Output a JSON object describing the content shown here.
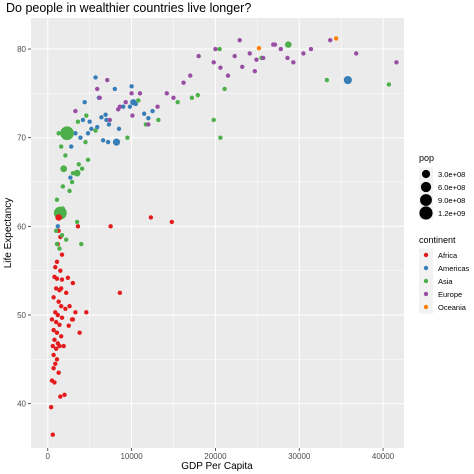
{
  "chart_data": {
    "type": "scatter",
    "title": "Do people in wealthier countries live longer?",
    "xlabel": "GDP Per Capita",
    "ylabel": "Life Expectancy",
    "xlim": [
      -2000,
      42500
    ],
    "ylim": [
      35,
      83.5
    ],
    "xticks": [
      0,
      10000,
      20000,
      30000,
      40000
    ],
    "xtick_labels": [
      "0",
      "10000",
      "20000",
      "30000",
      "40000"
    ],
    "yticks": [
      40,
      50,
      60,
      70,
      80
    ],
    "ytick_labels": [
      "40",
      "50",
      "60",
      "70",
      "80"
    ],
    "grid": true,
    "legend_placement": "right",
    "colors": {
      "Africa": "#e41a1c",
      "Americas": "#377eb8",
      "Asia": "#4daf4a",
      "Europe": "#984ea3",
      "Oceania": "#ff7f00"
    },
    "size_legend": {
      "title": "pop",
      "entries": [
        {
          "label": "3.0e+08",
          "value": 300000000
        },
        {
          "label": "6.0e+08",
          "value": 600000000
        },
        {
          "label": "9.0e+08",
          "value": 900000000
        },
        {
          "label": "1.2e+09",
          "value": 1200000000
        }
      ]
    },
    "color_legend": {
      "title": "continent",
      "entries": [
        "Africa",
        "Americas",
        "Asia",
        "Europe",
        "Oceania"
      ]
    },
    "series": [
      {
        "name": "Africa",
        "points": [
          [
            1000,
            61.5
          ],
          [
            1300,
            59.5
          ],
          [
            1500,
            58.8
          ],
          [
            1200,
            58.0
          ],
          [
            1700,
            56.8
          ],
          [
            1100,
            56.0
          ],
          [
            900,
            55.4
          ],
          [
            1500,
            55.0
          ],
          [
            800,
            54.3
          ],
          [
            1100,
            54.1
          ],
          [
            1700,
            54.0
          ],
          [
            2400,
            54.2
          ],
          [
            3000,
            53.6
          ],
          [
            1000,
            53.0
          ],
          [
            1400,
            52.8
          ],
          [
            2200,
            52.5
          ],
          [
            700,
            52.0
          ],
          [
            1300,
            51.5
          ],
          [
            1600,
            51.0
          ],
          [
            2100,
            50.7
          ],
          [
            900,
            50.3
          ],
          [
            1200,
            50.0
          ],
          [
            1700,
            49.7
          ],
          [
            500,
            49.5
          ],
          [
            1000,
            49.2
          ],
          [
            1400,
            48.9
          ],
          [
            2500,
            48.8
          ],
          [
            3000,
            49.5
          ],
          [
            700,
            48.3
          ],
          [
            1100,
            48.0
          ],
          [
            1600,
            47.6
          ],
          [
            800,
            47.2
          ],
          [
            1200,
            46.8
          ],
          [
            600,
            46.5
          ],
          [
            1000,
            46.2
          ],
          [
            1400,
            46.5
          ],
          [
            700,
            45.5
          ],
          [
            1100,
            45.0
          ],
          [
            900,
            44.5
          ],
          [
            700,
            44.0
          ],
          [
            1300,
            43.5
          ],
          [
            500,
            42.6
          ],
          [
            800,
            42.4
          ],
          [
            2000,
            41.0
          ],
          [
            1500,
            40.8
          ],
          [
            400,
            39.6
          ],
          [
            600,
            36.5
          ],
          [
            3300,
            50.3
          ],
          [
            3800,
            48.0
          ],
          [
            3600,
            60.0
          ],
          [
            7500,
            60.0
          ],
          [
            12300,
            61.0
          ],
          [
            14800,
            60.5
          ],
          [
            8600,
            52.5
          ],
          [
            4600,
            50.3
          ],
          [
            1900,
            46.5
          ],
          [
            2600,
            51.0
          ],
          [
            2900,
            49.5
          ],
          [
            1600,
            53.0
          ]
        ]
      },
      {
        "name": "Americas",
        "points": [
          [
            35800,
            76.5
          ],
          [
            6900,
            72.6
          ],
          [
            7000,
            72.0
          ],
          [
            8000,
            75.5
          ],
          [
            10000,
            75.8
          ],
          [
            9000,
            73.5
          ],
          [
            8500,
            71.0
          ],
          [
            9800,
            73.5
          ],
          [
            10500,
            73.8
          ],
          [
            12000,
            72.2
          ],
          [
            12500,
            73.0
          ],
          [
            11500,
            72.7
          ],
          [
            7200,
            69.5
          ],
          [
            7300,
            71.5
          ],
          [
            5200,
            71.0
          ],
          [
            5000,
            71.8
          ],
          [
            6400,
            72.3
          ],
          [
            4800,
            70.5
          ],
          [
            4400,
            74.0
          ],
          [
            4200,
            72.0
          ],
          [
            3300,
            70.5
          ],
          [
            2800,
            69.0
          ],
          [
            2700,
            65.5
          ],
          [
            1200,
            60.0
          ],
          [
            5700,
            76.8
          ],
          [
            6100,
            74.5
          ],
          [
            3900,
            70.0
          ],
          [
            5900,
            71.2
          ],
          [
            6600,
            69.7
          ]
        ]
      },
      {
        "name": "Asia",
        "points": [
          [
            2300,
            70.5
          ],
          [
            1500,
            61.5
          ],
          [
            28700,
            80.5
          ],
          [
            40700,
            76.0
          ],
          [
            33300,
            76.5
          ],
          [
            20600,
            70.0
          ],
          [
            25500,
            79.0
          ],
          [
            15500,
            74.0
          ],
          [
            17200,
            74.5
          ],
          [
            19800,
            72.0
          ],
          [
            20500,
            80.0
          ],
          [
            21100,
            75.5
          ],
          [
            17900,
            74.8
          ],
          [
            1300,
            70.5
          ],
          [
            1600,
            69.0
          ],
          [
            1800,
            64.5
          ],
          [
            2600,
            64.0
          ],
          [
            3700,
            67.0
          ],
          [
            3000,
            66.0
          ],
          [
            4800,
            67.5
          ],
          [
            4500,
            69.5
          ],
          [
            1100,
            63.0
          ],
          [
            1000,
            59.5
          ],
          [
            1700,
            59.0
          ],
          [
            2200,
            58.5
          ],
          [
            3500,
            60.5
          ],
          [
            4000,
            58.0
          ],
          [
            2100,
            68.0
          ],
          [
            2400,
            70.0
          ],
          [
            4100,
            66.5
          ],
          [
            1800,
            62.0
          ],
          [
            1100,
            58.0
          ],
          [
            2900,
            65.0
          ],
          [
            3600,
            71.8
          ],
          [
            4600,
            72.5
          ],
          [
            5700,
            70.8
          ],
          [
            11700,
            71.5
          ],
          [
            13200,
            72.0
          ],
          [
            10800,
            74.2
          ],
          [
            9500,
            70.0
          ],
          [
            1400,
            57.5
          ]
        ]
      },
      {
        "name": "Europe",
        "points": [
          [
            36800,
            79.5
          ],
          [
            33700,
            81.0
          ],
          [
            31400,
            80.0
          ],
          [
            30500,
            79.5
          ],
          [
            28600,
            79.0
          ],
          [
            27800,
            80.0
          ],
          [
            26900,
            80.5
          ],
          [
            25700,
            79.0
          ],
          [
            24900,
            78.8
          ],
          [
            24100,
            79.5
          ],
          [
            23200,
            78.0
          ],
          [
            22300,
            79.2
          ],
          [
            20600,
            77.9
          ],
          [
            19800,
            78.5
          ],
          [
            18000,
            79.2
          ],
          [
            17000,
            77.0
          ],
          [
            16200,
            76.2
          ],
          [
            15000,
            74.5
          ],
          [
            14200,
            75.0
          ],
          [
            13100,
            73.5
          ],
          [
            12000,
            71.5
          ],
          [
            11000,
            75.0
          ],
          [
            10100,
            72.5
          ],
          [
            9300,
            74.0
          ],
          [
            8400,
            73.2
          ],
          [
            7400,
            72.0
          ],
          [
            6200,
            74.5
          ],
          [
            5900,
            75.5
          ],
          [
            7100,
            76.5
          ],
          [
            8600,
            73.5
          ],
          [
            10000,
            75.0
          ],
          [
            3300,
            73.0
          ],
          [
            41600,
            78.5
          ],
          [
            29300,
            78.5
          ],
          [
            27100,
            80.5
          ],
          [
            22900,
            81.0
          ],
          [
            24700,
            77.5
          ],
          [
            21500,
            77.0
          ],
          [
            20000,
            80.0
          ]
        ]
      },
      {
        "name": "Oceania",
        "points": [
          [
            34400,
            81.2
          ],
          [
            25200,
            80.1
          ]
        ]
      }
    ],
    "highlighted_points": [
      {
        "continent": "Asia",
        "x": 2300,
        "y": 70.5,
        "pop": 1320000000
      },
      {
        "continent": "Asia",
        "x": 1500,
        "y": 61.5,
        "pop": 1110000000
      },
      {
        "continent": "Americas",
        "x": 35800,
        "y": 76.5,
        "pop": 301000000
      },
      {
        "continent": "Asia",
        "x": 28700,
        "y": 80.5,
        "pop": 130000000
      },
      {
        "continent": "Asia",
        "x": 3500,
        "y": 66.0,
        "pop": 150000000
      },
      {
        "continent": "Americas",
        "x": 8200,
        "y": 69.5,
        "pop": 190000000
      },
      {
        "continent": "Americas",
        "x": 10200,
        "y": 74.0,
        "pop": 108000000
      },
      {
        "continent": "Africa",
        "x": 1300,
        "y": 61.0,
        "pop": 135000000
      },
      {
        "continent": "Asia",
        "x": 1900,
        "y": 66.5,
        "pop": 150000000
      }
    ]
  }
}
